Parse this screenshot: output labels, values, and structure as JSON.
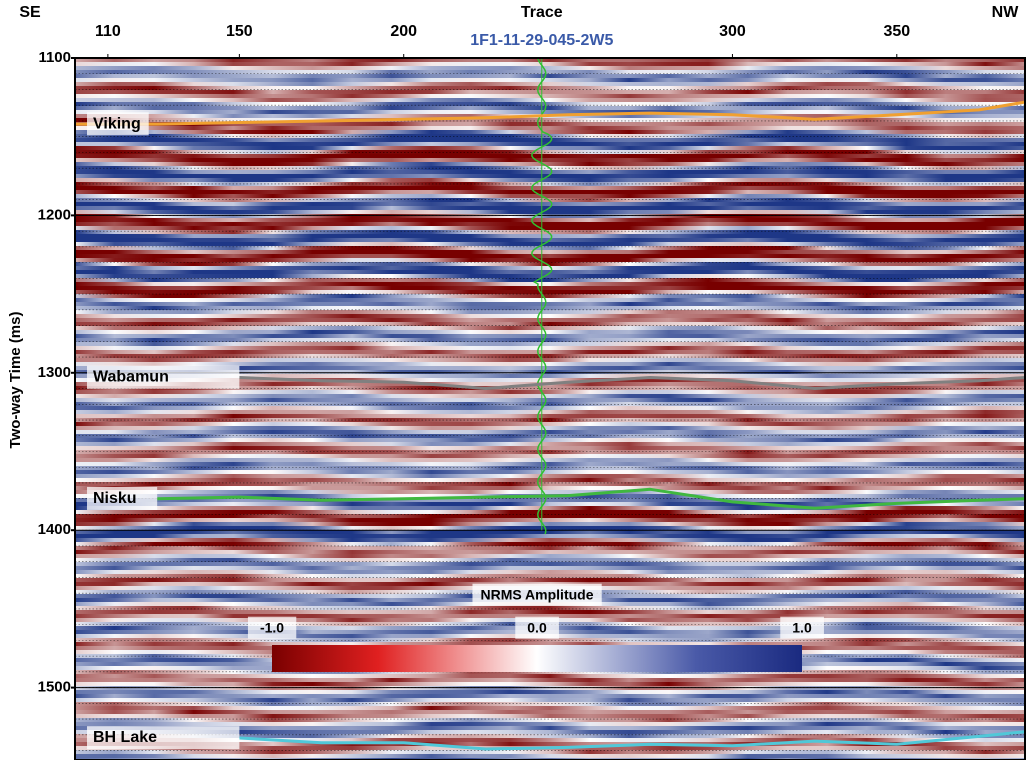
{
  "chart_data": {
    "type": "seismic-section",
    "x_label": "Trace",
    "y_label": "Two-way Time (ms)",
    "left_label": "SE",
    "right_label": "NW",
    "xlim": [
      100,
      389
    ],
    "xticks": [
      110,
      150,
      200,
      300,
      350
    ],
    "ylim": [
      1100,
      1546
    ],
    "yticks": [
      1100,
      1200,
      1300,
      1400,
      1500
    ],
    "y_reversed": true,
    "grid": true,
    "well": {
      "name": "1F1-11-29-045-2W5",
      "trace": 242,
      "color": "#3a5aa8"
    },
    "x": [
      100,
      125,
      150,
      175,
      200,
      225,
      250,
      275,
      300,
      325,
      350,
      375,
      389
    ],
    "series": [
      {
        "name": "Viking",
        "color": "#f0a030",
        "values": [
          1142,
          1142,
          1141,
          1140,
          1139,
          1138,
          1136,
          1135,
          1136,
          1139,
          1136,
          1133,
          1128
        ]
      },
      {
        "name": "Wabamun",
        "color": "#808080",
        "values": [
          null,
          null,
          1303,
          1305,
          1306,
          1310,
          1306,
          1303,
          1305,
          1310,
          1307,
          1305,
          1303
        ]
      },
      {
        "name": "Nisku",
        "color": "#40b840",
        "values": [
          null,
          1380,
          1379,
          1381,
          1380,
          1379,
          1378,
          1374,
          1382,
          1386,
          1383,
          1381,
          1380
        ]
      },
      {
        "name": "BH Lake",
        "color": "#50c8d8",
        "values": [
          null,
          null,
          1532,
          1535,
          1535,
          1539,
          1538,
          1536,
          1537,
          1534,
          1536,
          1531,
          1528
        ]
      }
    ],
    "colorbar": {
      "title": "NRMS Amplitude",
      "lim": [
        -1,
        1
      ],
      "ticks": [
        {
          "value": -1,
          "label": "-1.0"
        },
        {
          "value": 0,
          "label": "0.0"
        },
        {
          "value": 1,
          "label": "1.0"
        }
      ]
    }
  }
}
